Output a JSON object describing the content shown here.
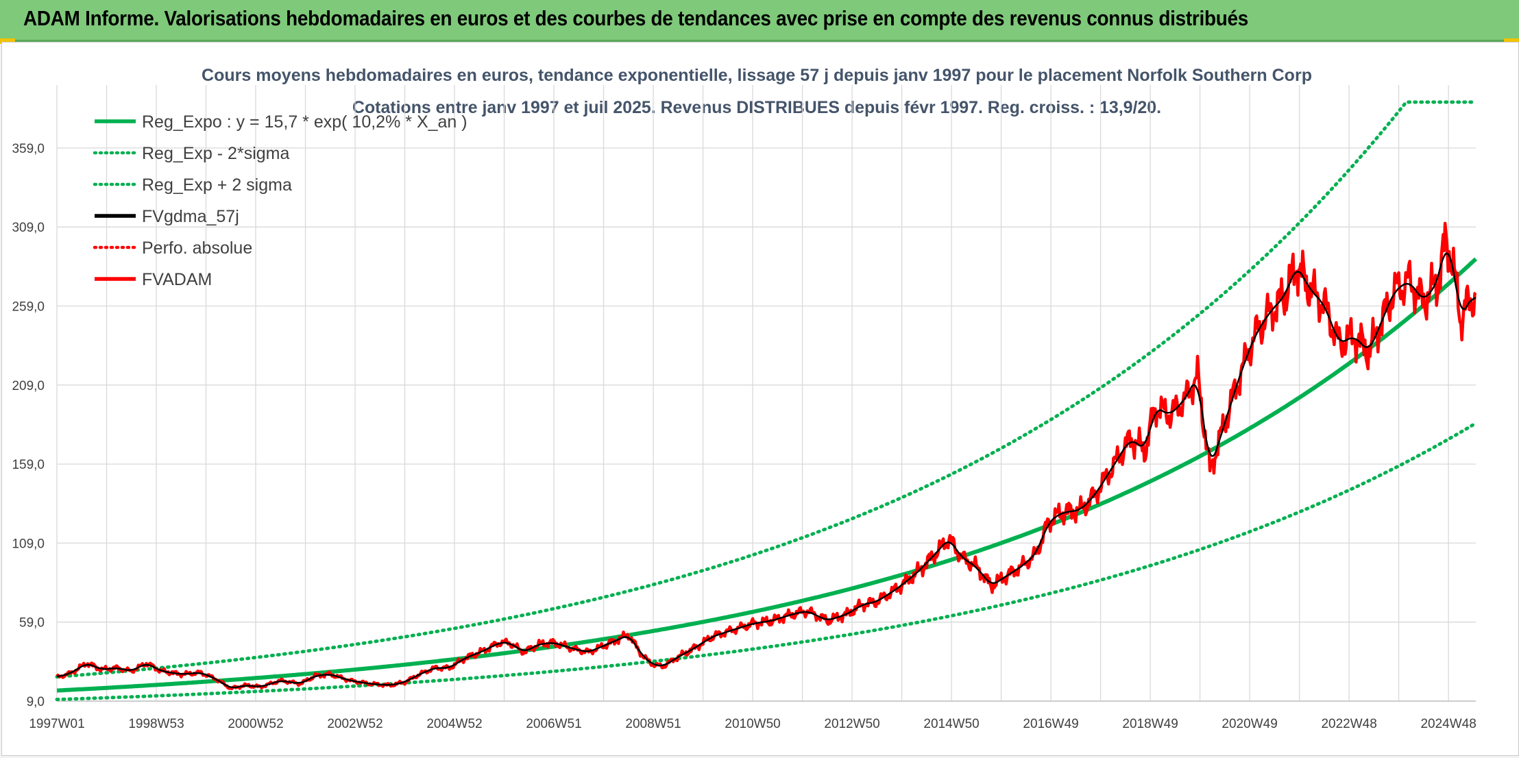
{
  "header": {
    "title": "ADAM Informe. Valorisations hebdomadaires en euros et des courbes de tendances avec prise en compte des revenus connus distribués"
  },
  "colors": {
    "banner": "#7ec97a",
    "trend": "#00b050",
    "price": "#ff0000",
    "smooth": "#000000",
    "grid": "#d9d9d9"
  },
  "chart_data": {
    "type": "line",
    "title": "Cours moyens hebdomadaires en euros, tendance exponentielle, lissage 57 j depuis janv 1997 pour le placement Norfolk Southern Corp",
    "subtitle": "Cotations entre janv 1997 et juil 2025. Revenus DISTRIBUES depuis févr 1997. Reg. croiss. : 13,9/20.",
    "xlabel": "",
    "ylabel": "",
    "ylim": [
      9,
      384
    ],
    "y_ticks": [
      "9,0",
      "59,0",
      "109,0",
      "159,0",
      "209,0",
      "259,0",
      "309,0",
      "359,0"
    ],
    "x_ticks": [
      "1997W01",
      "1998W53",
      "2000W52",
      "2002W52",
      "2004W52",
      "2006W51",
      "2008W51",
      "2010W50",
      "2012W50",
      "2014W50",
      "2016W49",
      "2018W49",
      "2020W49",
      "2022W48",
      "2024W48"
    ],
    "x_range": [
      1997.0,
      2025.55
    ],
    "grid": true,
    "legend_position": "top-left",
    "legend": [
      {
        "label": "Reg_Expo : y = 15,7 * exp( 10,2% *  X_an )",
        "color": "#00b050",
        "style": "solid"
      },
      {
        "label": "Reg_Exp - 2*sigma",
        "color": "#00b050",
        "style": "dotted"
      },
      {
        "label": "Reg_Exp + 2 sigma",
        "color": "#00b050",
        "style": "dotted"
      },
      {
        "label": "FVgdma_57j",
        "color": "#000000",
        "style": "solid"
      },
      {
        "label": "Perfo. absolue",
        "color": "#ff0000",
        "style": "dotted"
      },
      {
        "label": "FVADAM",
        "color": "#ff0000",
        "style": "solid"
      }
    ],
    "series": [
      {
        "name": "FVADAM",
        "points": [
          [
            1997.0,
            24
          ],
          [
            1997.3,
            27
          ],
          [
            1997.6,
            33
          ],
          [
            1997.9,
            29
          ],
          [
            1998.2,
            30
          ],
          [
            1998.5,
            28
          ],
          [
            1998.8,
            33
          ],
          [
            1999.1,
            28
          ],
          [
            1999.5,
            26
          ],
          [
            1999.9,
            27
          ],
          [
            2000.2,
            23
          ],
          [
            2000.5,
            17
          ],
          [
            2000.8,
            19
          ],
          [
            2001.1,
            18
          ],
          [
            2001.5,
            22
          ],
          [
            2001.9,
            20
          ],
          [
            2002.2,
            25
          ],
          [
            2002.5,
            26
          ],
          [
            2002.9,
            22
          ],
          [
            2003.3,
            20
          ],
          [
            2003.7,
            19
          ],
          [
            2004.0,
            21
          ],
          [
            2004.3,
            26
          ],
          [
            2004.6,
            30
          ],
          [
            2004.9,
            30
          ],
          [
            2005.2,
            36
          ],
          [
            2005.6,
            41
          ],
          [
            2005.9,
            46
          ],
          [
            2006.1,
            46
          ],
          [
            2006.4,
            40
          ],
          [
            2006.7,
            45
          ],
          [
            2007.0,
            46
          ],
          [
            2007.4,
            42
          ],
          [
            2007.7,
            40
          ],
          [
            2008.0,
            44
          ],
          [
            2008.3,
            48
          ],
          [
            2008.5,
            51
          ],
          [
            2008.8,
            37
          ],
          [
            2009.0,
            32
          ],
          [
            2009.2,
            31
          ],
          [
            2009.5,
            37
          ],
          [
            2009.8,
            42
          ],
          [
            2010.2,
            50
          ],
          [
            2010.6,
            54
          ],
          [
            2011.0,
            58
          ],
          [
            2011.4,
            60
          ],
          [
            2011.8,
            64
          ],
          [
            2012.1,
            66
          ],
          [
            2012.5,
            60
          ],
          [
            2012.9,
            64
          ],
          [
            2013.2,
            70
          ],
          [
            2013.5,
            72
          ],
          [
            2013.9,
            80
          ],
          [
            2014.3,
            90
          ],
          [
            2014.7,
            103
          ],
          [
            2014.95,
            112
          ],
          [
            2015.2,
            100
          ],
          [
            2015.5,
            94
          ],
          [
            2015.8,
            82
          ],
          [
            2016.1,
            88
          ],
          [
            2016.4,
            94
          ],
          [
            2016.7,
            102
          ],
          [
            2016.95,
            122
          ],
          [
            2017.2,
            128
          ],
          [
            2017.6,
            130
          ],
          [
            2017.9,
            140
          ],
          [
            2018.1,
            150
          ],
          [
            2018.3,
            160
          ],
          [
            2018.6,
            175
          ],
          [
            2018.9,
            168
          ],
          [
            2019.1,
            195
          ],
          [
            2019.4,
            190
          ],
          [
            2019.7,
            200
          ],
          [
            2019.95,
            215
          ],
          [
            2020.2,
            155
          ],
          [
            2020.5,
            185
          ],
          [
            2020.8,
            215
          ],
          [
            2021.1,
            240
          ],
          [
            2021.4,
            255
          ],
          [
            2021.7,
            265
          ],
          [
            2021.95,
            285
          ],
          [
            2022.2,
            270
          ],
          [
            2022.5,
            260
          ],
          [
            2022.8,
            235
          ],
          [
            2023.1,
            240
          ],
          [
            2023.4,
            230
          ],
          [
            2023.6,
            245
          ],
          [
            2023.9,
            268
          ],
          [
            2024.2,
            275
          ],
          [
            2024.5,
            262
          ],
          [
            2024.8,
            275
          ],
          [
            2024.95,
            302
          ],
          [
            2025.1,
            283
          ],
          [
            2025.25,
            250
          ],
          [
            2025.4,
            262
          ],
          [
            2025.55,
            266
          ]
        ]
      }
    ]
  }
}
